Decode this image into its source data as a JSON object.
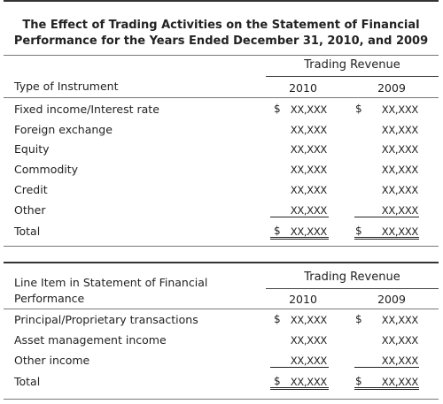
{
  "title_line1": "The Effect of Trading Activities on the Statement of Financial",
  "title_line2": "Performance for the Years Ended December 31, 2010, and 2009",
  "table1": {
    "group_header": "Trading Revenue",
    "row_header": "Type of Instrument",
    "year1": "2010",
    "year2": "2009",
    "currency": "$",
    "rows": [
      {
        "label": "Fixed income/Interest rate",
        "v1": "XX,XXX",
        "v2": "XX,XXX"
      },
      {
        "label": "Foreign exchange",
        "v1": "XX,XXX",
        "v2": "XX,XXX"
      },
      {
        "label": "Equity",
        "v1": "XX,XXX",
        "v2": "XX,XXX"
      },
      {
        "label": "Commodity",
        "v1": "XX,XXX",
        "v2": "XX,XXX"
      },
      {
        "label": "Credit",
        "v1": "XX,XXX",
        "v2": "XX,XXX"
      },
      {
        "label": "Other",
        "v1": "XX,XXX",
        "v2": "XX,XXX"
      },
      {
        "label": "Total",
        "v1": "XX,XXX",
        "v2": "XX,XXX"
      }
    ]
  },
  "table2": {
    "group_header": "Trading Revenue",
    "row_header_line1": "Line Item in Statement of Financial",
    "row_header_line2": "Performance",
    "year1": "2010",
    "year2": "2009",
    "currency": "$",
    "rows": [
      {
        "label": "Principal/Proprietary transactions",
        "v1": "XX,XXX",
        "v2": "XX,XXX"
      },
      {
        "label": "Asset management income",
        "v1": "XX,XXX",
        "v2": "XX,XXX"
      },
      {
        "label": "Other income",
        "v1": "XX,XXX",
        "v2": "XX,XXX"
      },
      {
        "label": "Total",
        "v1": "XX,XXX",
        "v2": "XX,XXX"
      }
    ]
  }
}
